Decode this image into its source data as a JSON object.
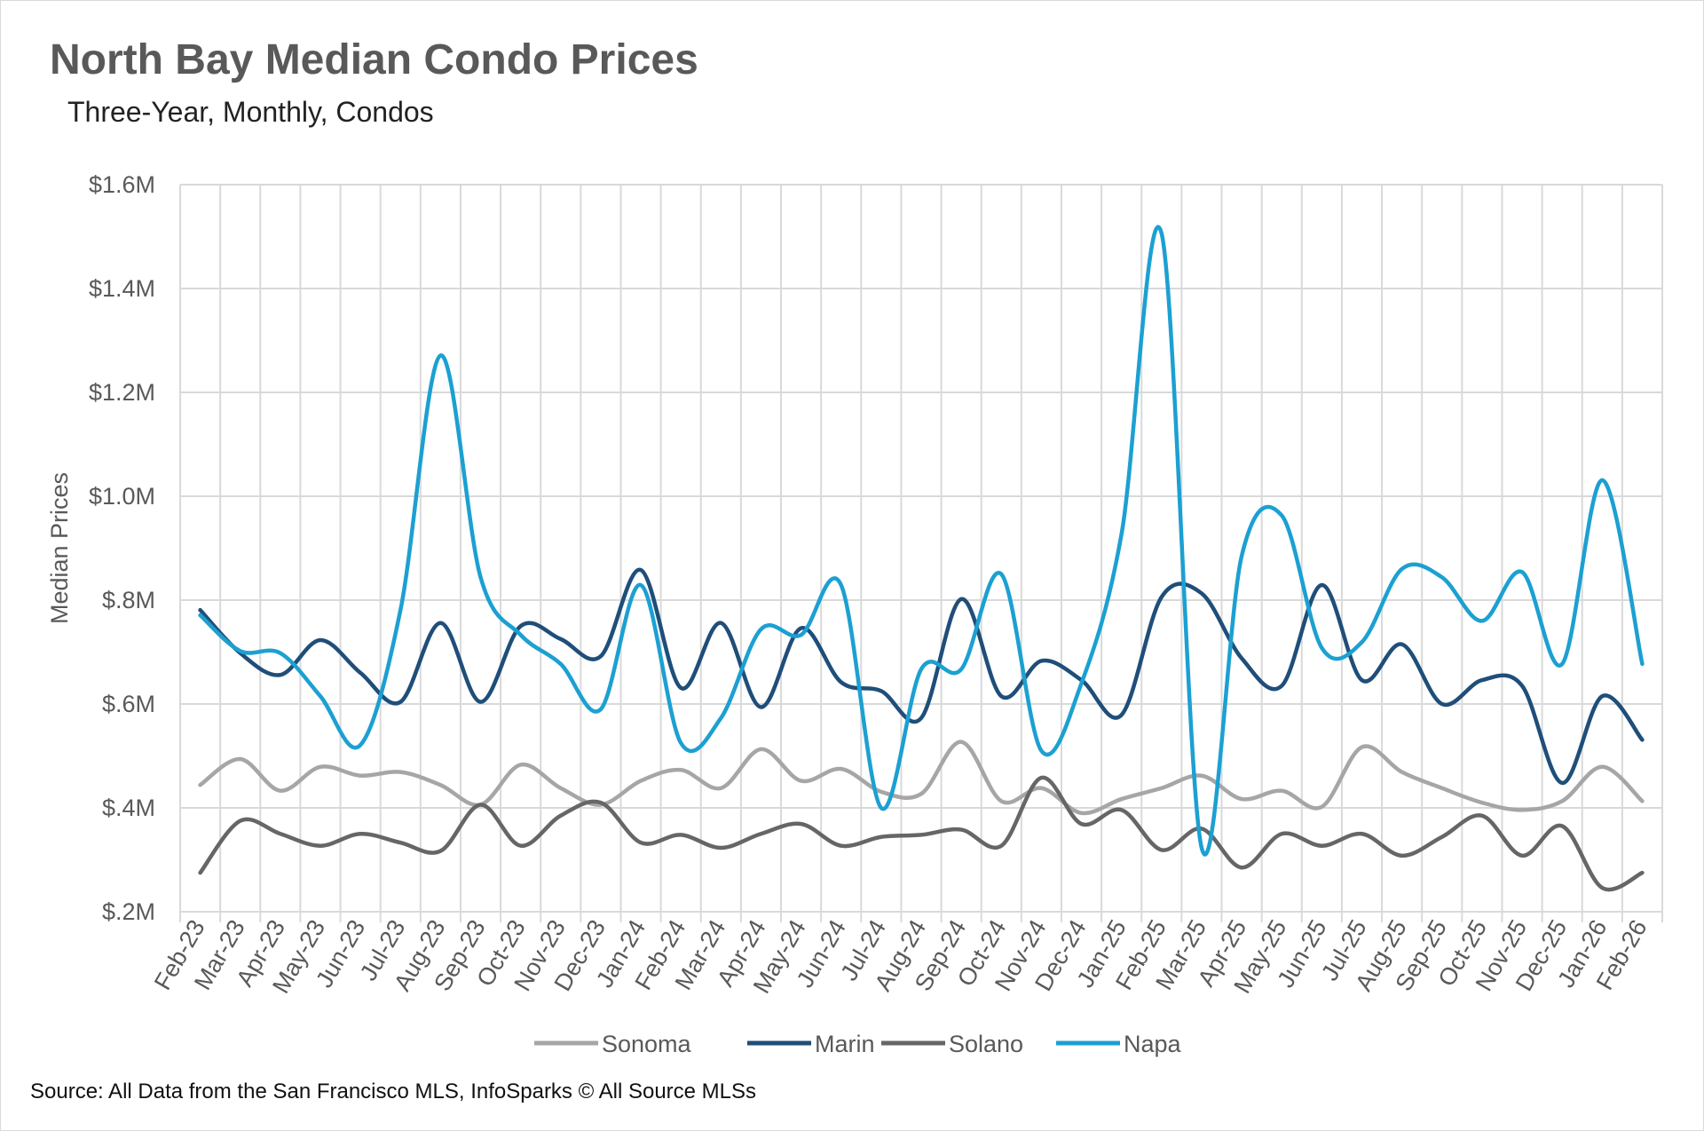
{
  "chart_data": {
    "type": "line",
    "title": "North Bay Median Condo Prices",
    "subtitle": "Three-Year, Monthly, Condos",
    "xlabel": "",
    "ylabel": "Median Prices",
    "ylim": [
      0.2,
      1.6
    ],
    "yticks": [
      "$.2M",
      "$.4M",
      "$.6M",
      "$.8M",
      "$1.0M",
      "$1.2M",
      "$1.4M",
      "$1.6M"
    ],
    "yunit": "millions USD",
    "grid": true,
    "legend_position": "bottom",
    "smooth": true,
    "categories": [
      "Feb-23",
      "Mar-23",
      "Apr-23",
      "May-23",
      "Jun-23",
      "Jul-23",
      "Aug-23",
      "Sep-23",
      "Oct-23",
      "Nov-23",
      "Dec-23",
      "Jan-24",
      "Feb-24",
      "Mar-24",
      "Apr-24",
      "May-24",
      "Jun-24",
      "Jul-24",
      "Aug-24",
      "Sep-24",
      "Oct-24",
      "Nov-24",
      "Dec-24",
      "Jan-25",
      "Feb-25",
      "Mar-25",
      "Apr-25",
      "May-25",
      "Jun-25",
      "Jul-25",
      "Aug-25",
      "Sep-25",
      "Oct-25",
      "Nov-25",
      "Dec-25",
      "Jan-26",
      "Feb-26"
    ],
    "series": [
      {
        "name": "Sonoma",
        "color": "#a6a6a6",
        "values": [
          0.444,
          0.494,
          0.433,
          0.479,
          0.462,
          0.469,
          0.444,
          0.406,
          0.483,
          0.438,
          0.406,
          0.452,
          0.473,
          0.438,
          0.513,
          0.452,
          0.475,
          0.431,
          0.427,
          0.527,
          0.413,
          0.438,
          0.39,
          0.417,
          0.438,
          0.462,
          0.417,
          0.433,
          0.402,
          0.517,
          0.469,
          0.438,
          0.41,
          0.396,
          0.413,
          0.479,
          0.413
        ]
      },
      {
        "name": "Marin",
        "color": "#1f4e79",
        "values": [
          0.781,
          0.698,
          0.656,
          0.723,
          0.66,
          0.604,
          0.756,
          0.604,
          0.75,
          0.725,
          0.692,
          0.858,
          0.631,
          0.756,
          0.594,
          0.746,
          0.642,
          0.625,
          0.573,
          0.802,
          0.615,
          0.683,
          0.646,
          0.579,
          0.806,
          0.813,
          0.688,
          0.635,
          0.829,
          0.646,
          0.715,
          0.6,
          0.646,
          0.635,
          0.448,
          0.615,
          0.531
        ]
      },
      {
        "name": "Solano",
        "color": "#666666",
        "values": [
          0.275,
          0.375,
          0.35,
          0.327,
          0.35,
          0.333,
          0.317,
          0.406,
          0.327,
          0.385,
          0.41,
          0.333,
          0.348,
          0.323,
          0.35,
          0.369,
          0.327,
          0.344,
          0.348,
          0.358,
          0.327,
          0.458,
          0.369,
          0.396,
          0.319,
          0.36,
          0.285,
          0.35,
          0.327,
          0.35,
          0.308,
          0.344,
          0.385,
          0.308,
          0.365,
          0.246,
          0.275
        ]
      },
      {
        "name": "Napa",
        "color": "#1ca0d2",
        "values": [
          0.771,
          0.702,
          0.698,
          0.615,
          0.521,
          0.781,
          1.271,
          0.844,
          0.733,
          0.677,
          0.59,
          0.829,
          0.525,
          0.573,
          0.744,
          0.733,
          0.829,
          0.4,
          0.667,
          0.667,
          0.85,
          0.51,
          0.64,
          0.927,
          1.506,
          0.323,
          0.885,
          0.963,
          0.708,
          0.719,
          0.86,
          0.844,
          0.76,
          0.854,
          0.677,
          1.031,
          0.677
        ]
      }
    ]
  },
  "source": "Source: All Data from the San Francisco MLS, InfoSparks © All Source MLSs"
}
